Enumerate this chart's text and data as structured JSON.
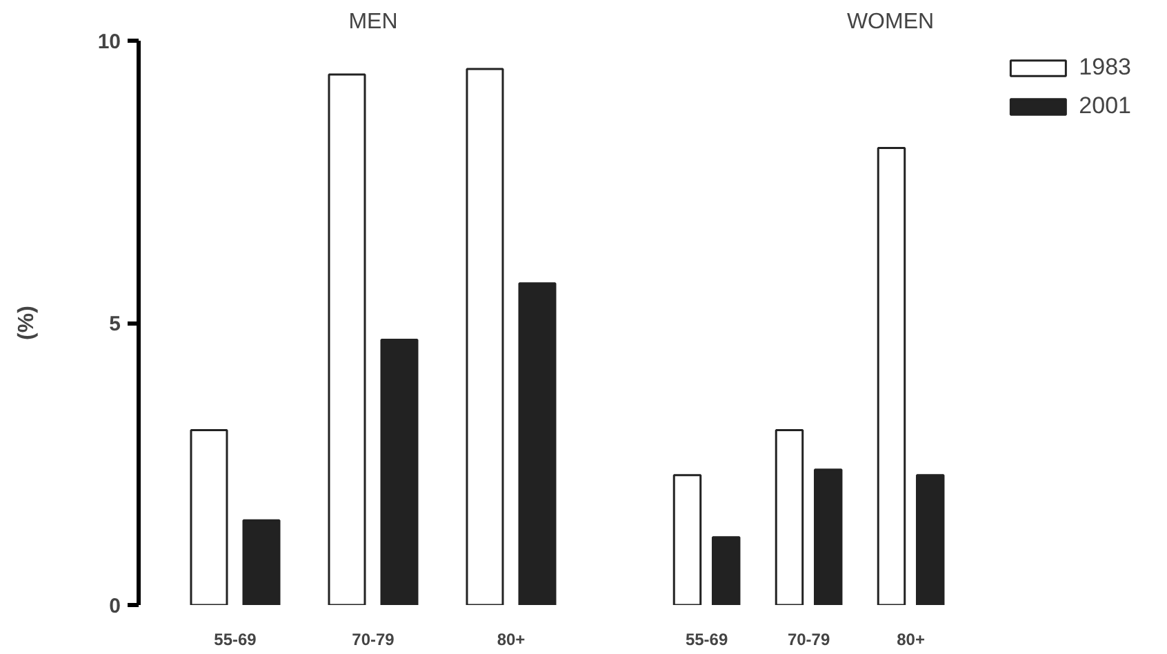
{
  "chart_data": [
    {
      "type": "bar",
      "title": "MEN",
      "ylabel": "(%)",
      "categories": [
        "55-69",
        "70-79",
        "80+"
      ],
      "ylim": [
        0,
        10
      ],
      "yticks": [
        0,
        5,
        10
      ],
      "grid": false,
      "legend": false,
      "series": [
        {
          "color": "#ffffff",
          "values": [
            3.1,
            9.4,
            9.5
          ]
        },
        {
          "color": "#222222",
          "values": [
            1.5,
            4.7,
            5.7
          ]
        }
      ]
    },
    {
      "type": "bar",
      "title": "WOMEN",
      "categories": [
        "55-69",
        "70-79",
        "80+"
      ],
      "ylim": [
        0,
        10
      ],
      "yticks": [
        0,
        5,
        10
      ],
      "grid": false,
      "tick_labels": "x",
      "legend": "top right",
      "series": [
        {
          "name": "1983",
          "color": "#ffffff",
          "values": [
            2.3,
            3.1,
            8.1
          ]
        },
        {
          "name": "2001",
          "color": "#222222",
          "values": [
            1.2,
            2.4,
            2.3
          ]
        }
      ]
    }
  ]
}
